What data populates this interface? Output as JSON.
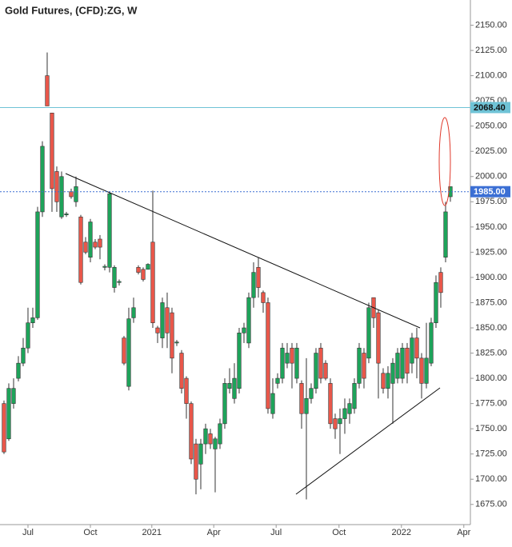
{
  "chart_data": {
    "type": "candlestick",
    "title": "Gold Futures, (CFD):ZG, W",
    "up_color": "#1ea35a",
    "down_color": "#e8574a",
    "open": [
      1775,
      1740,
      1775,
      1800,
      1815,
      1830,
      1855,
      1860,
      1965,
      2100,
      2063,
      2005,
      1960,
      1962,
      1985,
      1975,
      1960,
      1935,
      1920,
      1935,
      1938,
      1910,
      1910,
      1890,
      1895,
      1840,
      1792,
      1860,
      1910,
      1908,
      1908,
      1935,
      1850,
      1840,
      1870,
      1865,
      1835,
      1825,
      1800,
      1775,
      1735,
      1715,
      1735,
      1745,
      1730,
      1735,
      1755,
      1790,
      1780,
      1790,
      1845,
      1835,
      1880,
      1910,
      1885,
      1875,
      1765,
      1795,
      1800,
      1815,
      1830,
      1800,
      1795,
      1765,
      1780,
      1790,
      1830,
      1815,
      1795,
      1760,
      1755,
      1760,
      1765,
      1770,
      1795,
      1825,
      1820,
      1880,
      1865,
      1805,
      1790,
      1795,
      1800,
      1800,
      1830,
      1815,
      1840,
      1820,
      1795,
      1815,
      1855,
      1905,
      1920,
      1980
    ],
    "high": [
      1778,
      1795,
      1800,
      1822,
      1840,
      1870,
      1870,
      1970,
      2035,
      2123,
      2063,
      2010,
      2005,
      1965,
      1988,
      2000,
      1962,
      1940,
      1958,
      1938,
      1942,
      1913,
      1985,
      1912,
      1898,
      1842,
      1870,
      1880,
      1912,
      1910,
      1914,
      1986,
      1852,
      1880,
      1885,
      1870,
      1838,
      1828,
      1802,
      1777,
      1740,
      1740,
      1755,
      1750,
      1742,
      1760,
      1800,
      1810,
      1815,
      1850,
      1855,
      1885,
      1915,
      1920,
      1887,
      1880,
      1800,
      1805,
      1835,
      1835,
      1835,
      1835,
      1798,
      1820,
      1795,
      1830,
      1835,
      1818,
      1800,
      1765,
      1770,
      1780,
      1780,
      1800,
      1835,
      1830,
      1875,
      1880,
      1868,
      1810,
      1812,
      1820,
      1830,
      1835,
      1835,
      1845,
      1850,
      1825,
      1855,
      1860,
      1902,
      1910,
      1975,
      1990
    ],
    "low": [
      1725,
      1738,
      1770,
      1797,
      1812,
      1825,
      1850,
      1858,
      1960,
      2070,
      1965,
      1965,
      1958,
      1960,
      1978,
      1970,
      1893,
      1923,
      1915,
      1928,
      1918,
      1907,
      1905,
      1885,
      1892,
      1813,
      1788,
      1855,
      1903,
      1896,
      1910,
      1850,
      1835,
      1830,
      1830,
      1805,
      1832,
      1785,
      1760,
      1715,
      1685,
      1690,
      1725,
      1730,
      1687,
      1730,
      1750,
      1785,
      1775,
      1785,
      1835,
      1830,
      1870,
      1880,
      1865,
      1765,
      1760,
      1790,
      1795,
      1810,
      1790,
      1795,
      1750,
      1680,
      1775,
      1785,
      1795,
      1798,
      1750,
      1740,
      1725,
      1745,
      1755,
      1765,
      1790,
      1790,
      1815,
      1850,
      1780,
      1785,
      1780,
      1755,
      1795,
      1795,
      1795,
      1805,
      1800,
      1780,
      1790,
      1812,
      1850,
      1870,
      1915,
      1975
    ],
    "close": [
      1727,
      1790,
      1790,
      1815,
      1830,
      1855,
      1860,
      1965,
      2030,
      2070,
      1988,
      1975,
      2000,
      1963,
      1980,
      1990,
      1895,
      1925,
      1955,
      1930,
      1930,
      1911,
      1983,
      1910,
      1896,
      1815,
      1859,
      1870,
      1905,
      1898,
      1913,
      1855,
      1845,
      1875,
      1845,
      1820,
      1836,
      1790,
      1775,
      1720,
      1700,
      1735,
      1750,
      1735,
      1740,
      1755,
      1795,
      1795,
      1800,
      1845,
      1850,
      1880,
      1905,
      1890,
      1875,
      1770,
      1785,
      1800,
      1830,
      1825,
      1815,
      1830,
      1765,
      1780,
      1790,
      1825,
      1800,
      1800,
      1755,
      1750,
      1760,
      1770,
      1775,
      1795,
      1830,
      1800,
      1870,
      1860,
      1815,
      1790,
      1805,
      1815,
      1825,
      1830,
      1805,
      1840,
      1820,
      1795,
      1820,
      1855,
      1895,
      1885,
      1965,
      1990
    ],
    "price_lines": [
      {
        "value": 2068.4,
        "label": "2068.40",
        "color": "#6fc3d6"
      },
      {
        "value": 1985,
        "label": "1985.00",
        "color": "#3b6fd4"
      }
    ],
    "ylim": [
      1655,
      2175
    ],
    "yticks": [
      {
        "value": 1675,
        "label": "1675.00"
      },
      {
        "value": 1700,
        "label": "1700.00"
      },
      {
        "value": 1725,
        "label": "1725.00"
      },
      {
        "value": 1750,
        "label": "1750.00"
      },
      {
        "value": 1775,
        "label": "1775.00"
      },
      {
        "value": 1800,
        "label": "1800.00"
      },
      {
        "value": 1825,
        "label": "1825.00"
      },
      {
        "value": 1850,
        "label": "1850.00"
      },
      {
        "value": 1875,
        "label": "1875.00"
      },
      {
        "value": 1900,
        "label": "1900.00"
      },
      {
        "value": 1925,
        "label": "1925.00"
      },
      {
        "value": 1950,
        "label": "1950.00"
      },
      {
        "value": 1975,
        "label": "1975.00"
      },
      {
        "value": 2000,
        "label": "2000.00"
      },
      {
        "value": 2025,
        "label": "2025.00"
      },
      {
        "value": 2050,
        "label": "2050.00"
      },
      {
        "value": 2075,
        "label": "2075.00"
      },
      {
        "value": 2100,
        "label": "2100.00"
      },
      {
        "value": 2125,
        "label": "2125.00"
      },
      {
        "value": 2150,
        "label": "2150.00"
      }
    ],
    "xlim": [
      -0.83,
      97.17
    ],
    "xticks": [
      {
        "value": 5,
        "label": "Jul"
      },
      {
        "value": 18,
        "label": "Oct"
      },
      {
        "value": 30.8,
        "label": "2021"
      },
      {
        "value": 43.7,
        "label": "Apr"
      },
      {
        "value": 56.7,
        "label": "Jul"
      },
      {
        "value": 69.8,
        "label": "Oct"
      },
      {
        "value": 82.8,
        "label": "2022"
      },
      {
        "value": 95.8,
        "label": "Apr"
      }
    ]
  }
}
